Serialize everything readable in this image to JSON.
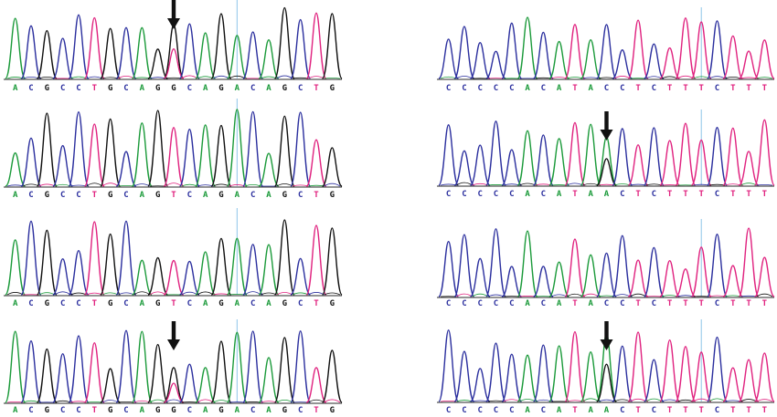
{
  "base_colors": {
    "A": "#1b9a3a",
    "C": "#2b2f9e",
    "G": "#111111",
    "T": "#e0227f"
  },
  "marker_color": "#8ec5e8",
  "arrow_color": "#111111",
  "panels": [
    {
      "id": "left-1",
      "sequence": [
        "A",
        "C",
        "G",
        "C",
        "C",
        "T",
        "G",
        "C",
        "A",
        "G",
        "G",
        "C",
        "A",
        "G",
        "A",
        "C",
        "A",
        "G",
        "C",
        "T",
        "G"
      ],
      "arrow_index": 10,
      "marker_index": 14,
      "double_peak_index": 10
    },
    {
      "id": "left-2",
      "sequence": [
        "A",
        "C",
        "G",
        "C",
        "C",
        "T",
        "G",
        "C",
        "A",
        "G",
        "T",
        "C",
        "A",
        "G",
        "A",
        "C",
        "A",
        "G",
        "C",
        "T",
        "G"
      ],
      "arrow_index": null,
      "marker_index": 14,
      "double_peak_index": null
    },
    {
      "id": "left-3",
      "sequence": [
        "A",
        "C",
        "G",
        "C",
        "C",
        "T",
        "G",
        "C",
        "A",
        "G",
        "T",
        "C",
        "A",
        "G",
        "A",
        "C",
        "A",
        "G",
        "C",
        "T",
        "G"
      ],
      "arrow_index": null,
      "marker_index": 14,
      "double_peak_index": null
    },
    {
      "id": "left-4",
      "sequence": [
        "A",
        "C",
        "G",
        "C",
        "C",
        "T",
        "G",
        "C",
        "A",
        "G",
        "G",
        "C",
        "A",
        "G",
        "A",
        "C",
        "A",
        "G",
        "C",
        "T",
        "G"
      ],
      "arrow_index": 10,
      "marker_index": 14,
      "double_peak_index": 10
    },
    {
      "id": "right-1",
      "sequence": [
        "C",
        "C",
        "C",
        "C",
        "C",
        "A",
        "C",
        "A",
        "T",
        "A",
        "C",
        "C",
        "T",
        "C",
        "T",
        "T",
        "T",
        "C",
        "T",
        "T",
        "T"
      ],
      "arrow_index": null,
      "marker_index": 16,
      "double_peak_index": null
    },
    {
      "id": "right-2",
      "sequence": [
        "C",
        "C",
        "C",
        "C",
        "C",
        "A",
        "C",
        "A",
        "T",
        "A",
        "A",
        "C",
        "T",
        "C",
        "T",
        "T",
        "T",
        "C",
        "T",
        "T",
        "T"
      ],
      "arrow_index": 10,
      "marker_index": 16,
      "double_peak_index": 10
    },
    {
      "id": "right-3",
      "sequence": [
        "C",
        "C",
        "C",
        "C",
        "C",
        "A",
        "C",
        "A",
        "T",
        "A",
        "C",
        "C",
        "T",
        "C",
        "T",
        "T",
        "T",
        "C",
        "T",
        "T",
        "T"
      ],
      "arrow_index": null,
      "marker_index": 16,
      "double_peak_index": null
    },
    {
      "id": "right-4",
      "sequence": [
        "C",
        "C",
        "C",
        "C",
        "C",
        "A",
        "C",
        "A",
        "T",
        "A",
        "A",
        "C",
        "T",
        "C",
        "T",
        "T",
        "T",
        "C",
        "T",
        "T",
        "T"
      ],
      "arrow_index": 10,
      "marker_index": 16,
      "double_peak_index": 10
    }
  ]
}
